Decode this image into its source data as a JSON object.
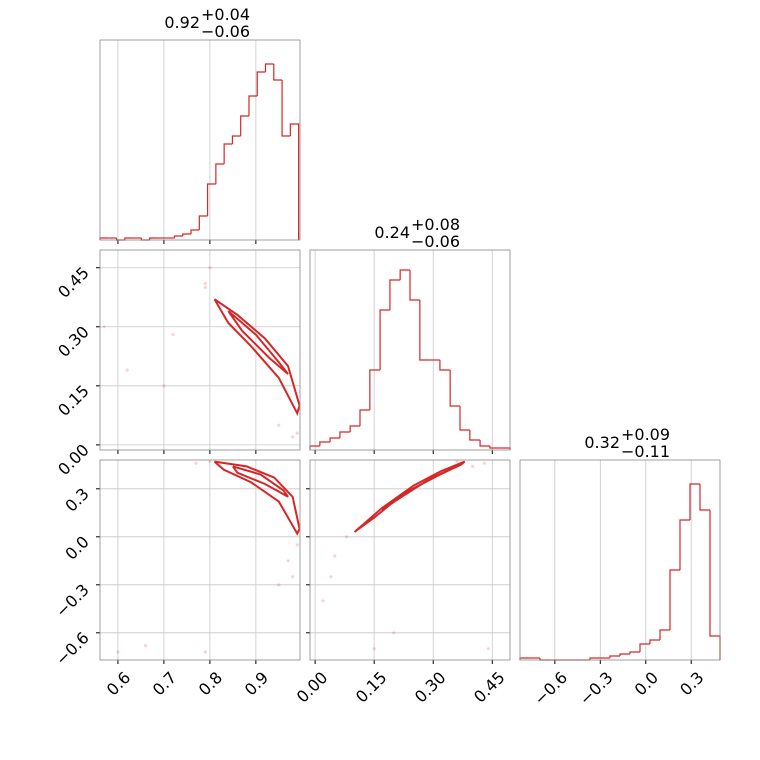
{
  "chart_data": {
    "type": "corner",
    "color": "#d62728",
    "grid": true,
    "axes": [
      {
        "lim": [
          0.561,
          0.996
        ],
        "ticks": [
          0.6,
          0.7,
          0.8,
          0.9
        ]
      },
      {
        "lim": [
          -0.013,
          0.495
        ],
        "ticks": [
          {
            "value": 0,
            "label": "0.00"
          },
          0.15,
          {
            "value": 0.3,
            "label": "0.30"
          },
          0.45
        ]
      },
      {
        "lim": [
          -0.83,
          0.49
        ],
        "ticks": [
          {
            "value": -0.6,
            "label": "−0.6"
          },
          {
            "value": -0.3,
            "label": "−0.3"
          },
          {
            "value": 0,
            "label": "0.0"
          },
          0.3
        ],
        "ylim": [
          -0.77,
          0.48
        ],
        "yticks": [
          {
            "value": -0.6,
            "label": "−0.6"
          },
          {
            "value": -0.3,
            "label": "−0.3"
          },
          {
            "value": 0,
            "label": "0.0"
          },
          0.3
        ]
      }
    ],
    "panels": [
      {
        "type": "histogram",
        "x_axis": 0,
        "ylim": [
          0,
          100
        ],
        "title": {
          "value": "0.92",
          "upper": "+0.04",
          "lower": "−0.06"
        },
        "bins": [
          0.561,
          0.579,
          0.597,
          0.615,
          0.633,
          0.651,
          0.669,
          0.687,
          0.705,
          0.723,
          0.741,
          0.759,
          0.777,
          0.795,
          0.813,
          0.831,
          0.849,
          0.867,
          0.885,
          0.903,
          0.921,
          0.939,
          0.957,
          0.975,
          0.993
        ],
        "values": [
          1,
          1,
          0,
          1,
          1,
          0,
          1,
          1,
          1,
          2,
          3,
          5,
          12,
          28,
          38,
          48,
          52,
          62,
          72,
          84,
          88,
          80,
          52,
          58
        ]
      },
      {
        "type": "scatter",
        "x_axis": 0,
        "y_axis": 1,
        "points": {
          "x": [
            0.8,
            0.79,
            0.72,
            0.62,
            0.57,
            0.98,
            0.95,
            0.7,
            0.79,
            0.99
          ],
          "y": [
            0.45,
            0.41,
            0.28,
            0.19,
            0.3,
            0.02,
            0.05,
            0.15,
            0.4,
            0.03
          ]
        },
        "contours": [
          {
            "x": [
              0.81,
              0.86,
              0.92,
              0.97,
              0.995,
              0.99,
              0.95,
              0.89,
              0.84,
              0.81
            ],
            "y": [
              0.37,
              0.33,
              0.27,
              0.2,
              0.1,
              0.08,
              0.17,
              0.25,
              0.31,
              0.37
            ]
          },
          {
            "x": [
              0.84,
              0.9,
              0.95,
              0.97,
              0.93,
              0.87,
              0.84
            ],
            "y": [
              0.34,
              0.28,
              0.21,
              0.18,
              0.22,
              0.29,
              0.34
            ]
          }
        ]
      },
      {
        "type": "histogram",
        "x_axis": 1,
        "ylim": [
          0,
          100
        ],
        "title": {
          "value": "0.24",
          "upper": "+0.08",
          "lower": "−0.06"
        },
        "bins": [
          -0.013,
          0.012,
          0.038,
          0.063,
          0.089,
          0.114,
          0.139,
          0.165,
          0.19,
          0.216,
          0.241,
          0.266,
          0.292,
          0.317,
          0.343,
          0.368,
          0.393,
          0.419,
          0.444,
          0.47,
          0.495
        ],
        "values": [
          2,
          4,
          6,
          9,
          12,
          20,
          40,
          70,
          85,
          90,
          75,
          45,
          45,
          40,
          22,
          10,
          5,
          2,
          1,
          1
        ]
      },
      {
        "type": "scatter",
        "x_axis": 0,
        "y_axis": 2,
        "points": {
          "x": [
            0.8,
            0.77,
            0.82,
            0.98,
            0.97,
            0.79,
            0.6,
            0.66,
            0.99,
            0.95
          ],
          "y": [
            0.47,
            0.46,
            0.45,
            -0.25,
            -0.15,
            -0.72,
            -0.72,
            -0.68,
            -0.05,
            -0.3
          ]
        },
        "contours": [
          {
            "x": [
              0.81,
              0.88,
              0.94,
              0.98,
              0.995,
              0.99,
              0.95,
              0.89,
              0.83,
              0.81
            ],
            "y": [
              0.47,
              0.44,
              0.37,
              0.25,
              0.05,
              0.02,
              0.22,
              0.34,
              0.42,
              0.47
            ]
          },
          {
            "x": [
              0.85,
              0.91,
              0.96,
              0.97,
              0.92,
              0.86,
              0.85
            ],
            "y": [
              0.44,
              0.39,
              0.29,
              0.25,
              0.33,
              0.4,
              0.44
            ]
          }
        ]
      },
      {
        "type": "scatter",
        "x_axis": 1,
        "y_axis": 2,
        "points": {
          "x": [
            0.08,
            0.05,
            0.04,
            0.02,
            0.15,
            0.36,
            0.43,
            0.2,
            0.4,
            0.44
          ],
          "y": [
            0.0,
            -0.12,
            -0.25,
            -0.4,
            -0.7,
            0.47,
            0.46,
            -0.6,
            0.44,
            -0.7
          ]
        },
        "contours": [
          {
            "x": [
              0.1,
              0.17,
              0.25,
              0.32,
              0.38,
              0.37,
              0.3,
              0.22,
              0.15,
              0.1
            ],
            "y": [
              0.03,
              0.18,
              0.32,
              0.41,
              0.47,
              0.45,
              0.37,
              0.26,
              0.12,
              0.03
            ]
          },
          {
            "x": [
              0.17,
              0.24,
              0.31,
              0.35,
              0.29,
              0.22,
              0.17
            ],
            "y": [
              0.17,
              0.29,
              0.38,
              0.43,
              0.36,
              0.25,
              0.17
            ]
          }
        ]
      },
      {
        "type": "histogram",
        "x_axis": 2,
        "ylim": [
          0,
          100
        ],
        "title": {
          "value": "0.32",
          "upper": "+0.09",
          "lower": "−0.11"
        },
        "bins": [
          -0.83,
          -0.764,
          -0.698,
          -0.632,
          -0.566,
          -0.5,
          -0.434,
          -0.368,
          -0.302,
          -0.236,
          -0.17,
          -0.104,
          -0.038,
          0.028,
          0.094,
          0.16,
          0.226,
          0.292,
          0.358,
          0.424,
          0.49
        ],
        "values": [
          1,
          1,
          0,
          0,
          0,
          0,
          0,
          1,
          1,
          2,
          3,
          4,
          8,
          10,
          15,
          45,
          70,
          88,
          75,
          12
        ]
      }
    ]
  }
}
